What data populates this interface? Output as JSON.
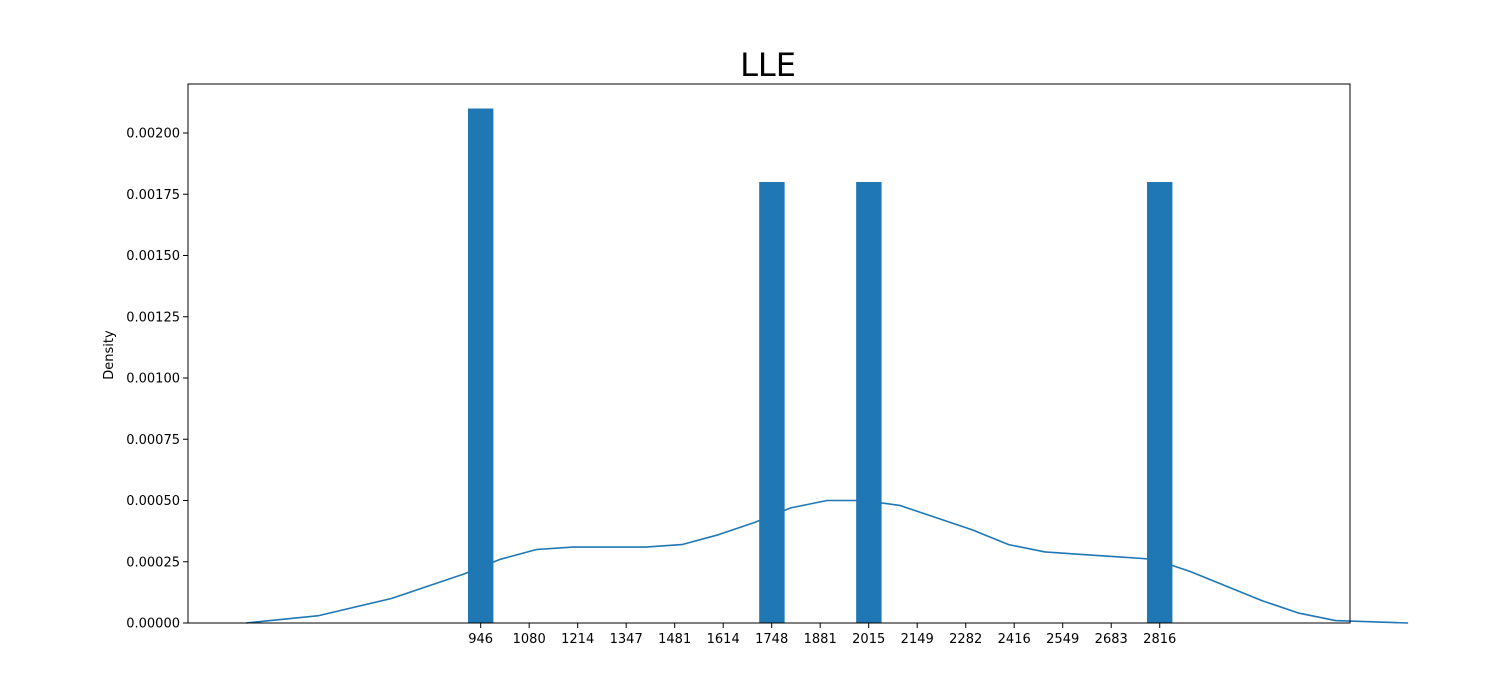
{
  "chart_data": {
    "type": "bar",
    "title": "LLE",
    "xlabel": "",
    "ylabel": "Density",
    "x_tick_labels": [
      "946",
      "1080",
      "1214",
      "1347",
      "1481",
      "1614",
      "1748",
      "1881",
      "2015",
      "2149",
      "2282",
      "2416",
      "2549",
      "2683",
      "2816"
    ],
    "y_tick_labels": [
      "0.00000",
      "0.00025",
      "0.00050",
      "0.00075",
      "0.00100",
      "0.00125",
      "0.00150",
      "0.00175",
      "0.00200"
    ],
    "y_ticks": [
      0,
      0.00025,
      0.0005,
      0.00075,
      0.001,
      0.00125,
      0.0015,
      0.00175,
      0.002
    ],
    "xlim": [
      140,
      3340
    ],
    "ylim": [
      0,
      0.0022
    ],
    "bars": [
      {
        "x": 946,
        "value": 0.0021
      },
      {
        "x": 1748,
        "value": 0.0018
      },
      {
        "x": 2015,
        "value": 0.0018
      },
      {
        "x": 2816,
        "value": 0.0018
      }
    ],
    "bar_width": 70,
    "kde": {
      "x": [
        300,
        500,
        700,
        900,
        1000,
        1100,
        1200,
        1300,
        1400,
        1500,
        1600,
        1700,
        1800,
        1900,
        2000,
        2100,
        2200,
        2300,
        2400,
        2500,
        2600,
        2700,
        2800,
        2900,
        3000,
        3100,
        3200,
        3300,
        3500
      ],
      "y": [
        0.0,
        3e-05,
        0.0001,
        0.0002,
        0.00026,
        0.0003,
        0.00031,
        0.00031,
        0.00031,
        0.00032,
        0.00036,
        0.00041,
        0.00047,
        0.0005,
        0.0005,
        0.00048,
        0.00043,
        0.00038,
        0.00032,
        0.00029,
        0.00028,
        0.00027,
        0.00026,
        0.00021,
        0.00015,
        9e-05,
        4e-05,
        1e-05,
        0.0
      ]
    },
    "colors": {
      "bar": "#1f77b4",
      "line": "#1f77b4"
    },
    "grid": false,
    "legend": "none"
  }
}
